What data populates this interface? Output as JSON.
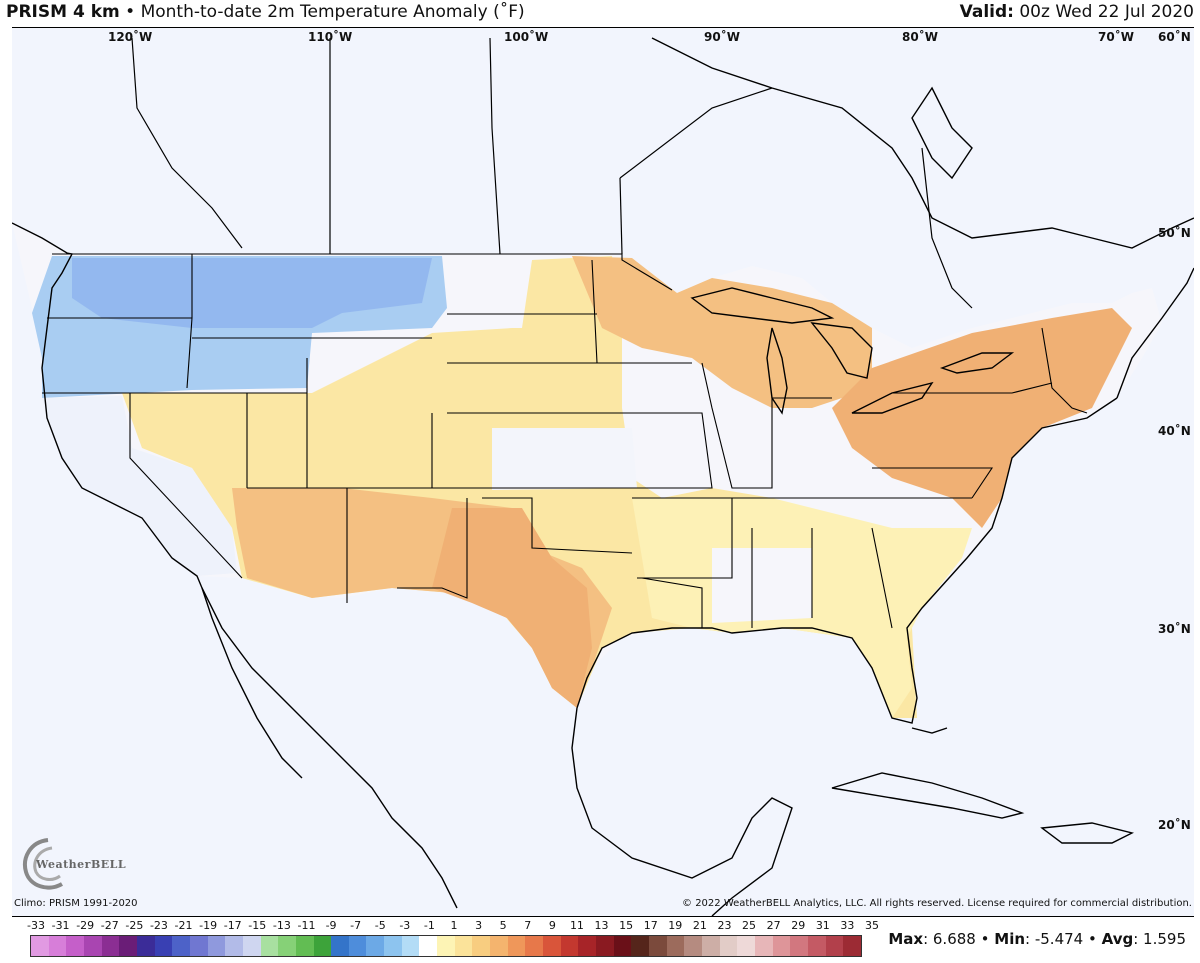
{
  "header": {
    "product": "PRISM 4 km",
    "separator": "•",
    "title": "Month-to-date 2m Temperature Anomaly (˚F)",
    "valid_label": "Valid:",
    "valid_value": "00z Wed 22 Jul 2020"
  },
  "map": {
    "lon_labels": [
      "120˚W",
      "110˚W",
      "100˚W",
      "90˚W",
      "80˚W",
      "70˚W",
      "60˚N"
    ],
    "lat_labels": [
      "50˚N",
      "40˚N",
      "30˚N",
      "20˚N"
    ],
    "colors": {
      "background": "#f2f5fd",
      "cold_strong": "#7fa6ec",
      "cold": "#a9cdf2",
      "neutral": "#f2f5fd",
      "warm_light": "#fdf3b0",
      "warm": "#f8d28f",
      "warm_strong": "#f0b074"
    }
  },
  "credits": {
    "left": "Climo: PRISM 1991-2020",
    "right": "© 2022 WeatherBELL Analytics, LLC. All rights reserved. License required for commercial distribution.",
    "logo": "WeatherBELL"
  },
  "colorbar": {
    "ticks": [
      "-33",
      "-31",
      "-29",
      "-27",
      "-25",
      "-23",
      "-21",
      "-19",
      "-17",
      "-15",
      "-13",
      "-11",
      "-9",
      "-7",
      "-5",
      "-3",
      "-1",
      "1",
      "3",
      "5",
      "7",
      "9",
      "11",
      "13",
      "15",
      "17",
      "19",
      "21",
      "23",
      "25",
      "27",
      "29",
      "31",
      "33",
      "35"
    ],
    "colors": [
      "#e19ae2",
      "#d77ed9",
      "#c55fc9",
      "#a945b1",
      "#8b2e93",
      "#6a1d77",
      "#3b2c98",
      "#3940b3",
      "#4d62c8",
      "#7077d1",
      "#8f99dd",
      "#b2bbe8",
      "#cfd6f0",
      "#a8e0a0",
      "#86d177",
      "#62bd53",
      "#3da33a",
      "#3474c9",
      "#4e8ddb",
      "#6ca9e6",
      "#8dc4ef",
      "#b3dcf6",
      "#ffffff",
      "#fdf4b5",
      "#fbe39a",
      "#f8cd80",
      "#f4b46e",
      "#ef975a",
      "#e7784a",
      "#d9553a",
      "#c3382f",
      "#a72428",
      "#8a1a21",
      "#6a1018",
      "#55251b",
      "#7b4a3c",
      "#9c6b5c",
      "#b58b80",
      "#cdaea6",
      "#e2ccc7",
      "#eed9d8",
      "#e7b6b8",
      "#de9599",
      "#d2777f",
      "#c45a64",
      "#b2404b",
      "#9c2b34"
    ]
  },
  "stats": {
    "max_label": "Max",
    "max_value": "6.688",
    "min_label": "Min",
    "min_value": "-5.474",
    "avg_label": "Avg",
    "avg_value": "1.595",
    "sep": "•"
  }
}
